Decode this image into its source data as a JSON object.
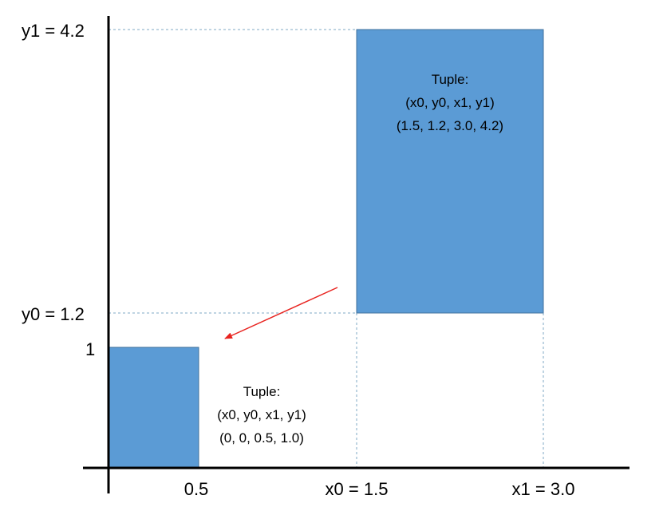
{
  "colors": {
    "box_fill": "#5b9bd5",
    "box_border": "#41719c",
    "guide": "#7fa8c6",
    "arrow": "#e8231f",
    "axis": "#000000"
  },
  "axis_labels": {
    "y1": "y1 = 4.2",
    "y0": "y0 = 1.2",
    "one": "1",
    "half": "0.5",
    "x0": "x0 = 1.5",
    "x1": "x1 = 3.0"
  },
  "large_box": {
    "title": "Tuple:",
    "fields": "(x0, y0, x1, y1)",
    "values": "(1.5, 1.2, 3.0, 4.2)"
  },
  "small_box": {
    "title": "Tuple:",
    "fields": "(x0, y0, x1, y1)",
    "values": "(0, 0, 0.5, 1.0)"
  }
}
